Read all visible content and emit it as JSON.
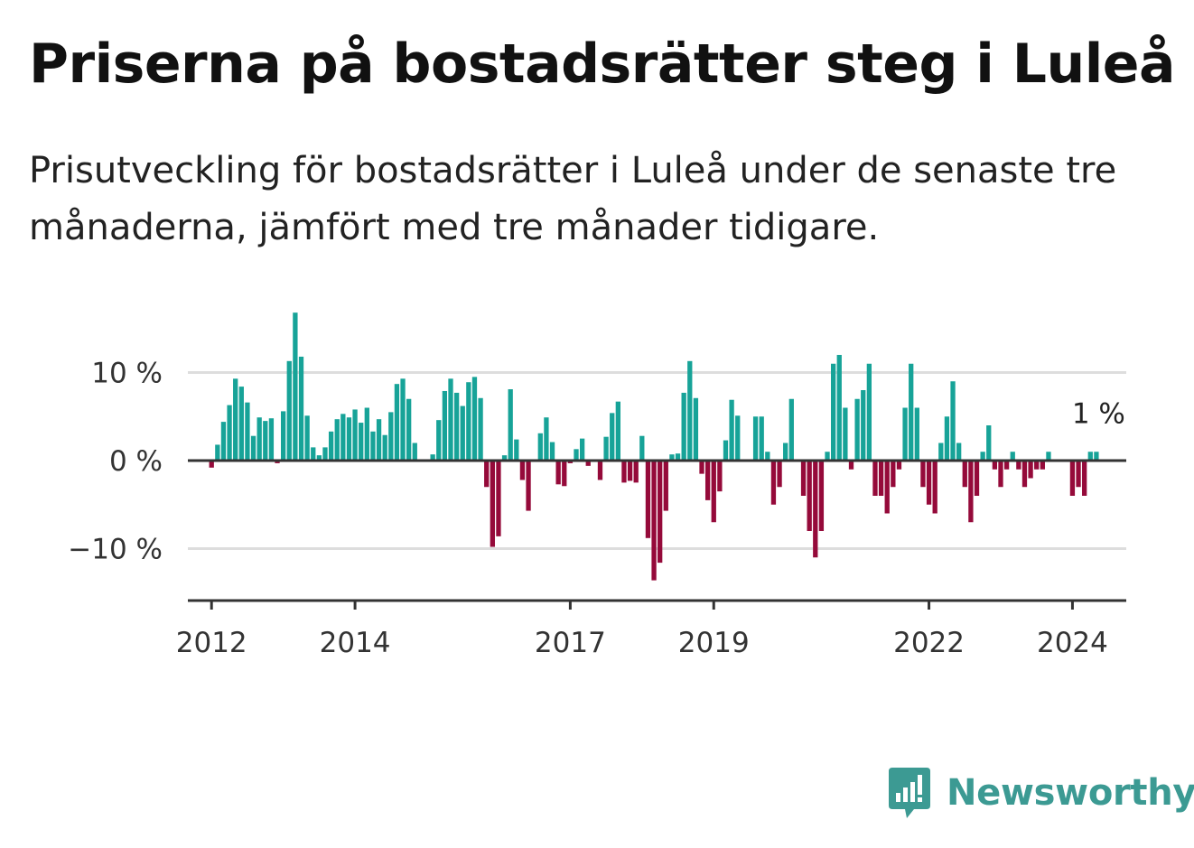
{
  "title": "Priserna på bostadsrätter steg i Luleå",
  "subtitle": "Prisutveckling för bostadsrätter i Luleå under de senaste tre månaderna, jämfört med tre månader tidigare.",
  "brand": {
    "name": "Newsworthy",
    "icon": "newsworthy-logo-icon",
    "color": "#3c9a93"
  },
  "colors": {
    "positive": "#17a398",
    "negative": "#950a3a",
    "grid": "#dddddd",
    "axis": "#333333"
  },
  "chart_data": {
    "type": "bar",
    "title": "Priserna på bostadsrätter steg i Luleå",
    "xlabel": "",
    "ylabel": "",
    "x_start": 2012.0,
    "x_step": 0.0833333,
    "x_domain": [
      2011.67,
      2024.75
    ],
    "ylim": [
      -16,
      18
    ],
    "y_ticks": [
      {
        "value": 10,
        "label": "10 %"
      },
      {
        "value": 0,
        "label": "0 %"
      },
      {
        "value": -10,
        "label": "−10 %"
      }
    ],
    "x_ticks": [
      {
        "value": 2012,
        "label": "2012"
      },
      {
        "value": 2014,
        "label": "2014"
      },
      {
        "value": 2017,
        "label": "2017"
      },
      {
        "value": 2019,
        "label": "2019"
      },
      {
        "value": 2022,
        "label": "2022"
      },
      {
        "value": 2024,
        "label": "2024"
      }
    ],
    "annotation": {
      "text": "1 %",
      "value": 1
    },
    "grid": true,
    "values": [
      -0.8,
      1.8,
      4.4,
      6.3,
      9.3,
      8.4,
      6.6,
      2.8,
      4.9,
      4.5,
      4.8,
      -0.3,
      5.6,
      11.3,
      16.8,
      11.8,
      5.1,
      1.5,
      0.6,
      1.5,
      3.3,
      4.7,
      5.3,
      4.9,
      5.8,
      4.3,
      6.0,
      3.3,
      4.7,
      2.9,
      5.5,
      8.7,
      9.3,
      7.0,
      2.0,
      0.0,
      0.0,
      0.7,
      4.6,
      7.9,
      9.3,
      7.7,
      6.2,
      8.9,
      9.5,
      7.1,
      -3.0,
      -9.8,
      -8.6,
      0.6,
      8.1,
      2.4,
      -2.2,
      -5.7,
      0.0,
      3.1,
      4.9,
      2.1,
      -2.7,
      -2.9,
      -0.3,
      1.3,
      2.5,
      -0.6,
      -0.1,
      -2.2,
      2.7,
      5.4,
      6.7,
      -2.5,
      -2.3,
      -2.5,
      2.8,
      -8.8,
      -13.6,
      -11.6,
      -5.7,
      0.7,
      0.8,
      7.7,
      11.3,
      7.1,
      -1.5,
      -4.5,
      -7.0,
      -3.5,
      2.3,
      6.9,
      5.1,
      0.0,
      0.0,
      5.0,
      5.0,
      1.0,
      -5.0,
      -3.0,
      2.0,
      7.0,
      0.0,
      -4.0,
      -8.0,
      -11.0,
      -8.0,
      1.0,
      11.0,
      12.0,
      6.0,
      -1.0,
      7.0,
      8.0,
      11.0,
      -4.0,
      -4.0,
      -6.0,
      -3.0,
      -1.0,
      6.0,
      11.0,
      6.0,
      -3.0,
      -5.0,
      -6.0,
      2.0,
      5.0,
      9.0,
      2.0,
      -3.0,
      -7.0,
      -4.0,
      1.0,
      4.0,
      -1.0,
      -3.0,
      -1.0,
      1.0,
      -1.0,
      -3.0,
      -2.0,
      -1.0,
      -1.0,
      1.0,
      0.0,
      0.0,
      0.0,
      -4.0,
      -3.0,
      -4.0,
      1.0,
      1.0
    ]
  }
}
